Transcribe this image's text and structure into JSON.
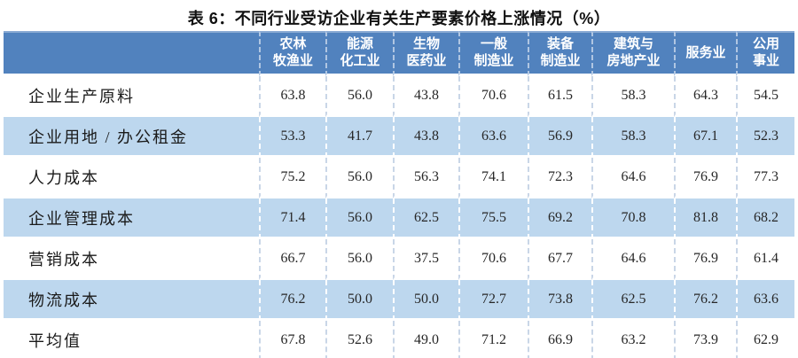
{
  "page": {
    "title": "表 6：不同行业受访企业有关生产要素价格上涨情况（%）"
  },
  "colors": {
    "header_bg": "#5182be",
    "header_text": "#ffffff",
    "row_alt_bg": "#bdd7ee",
    "row_white_bg": "#ffffff",
    "dashed_divider_on_white": "#c9d6e7",
    "dashed_divider_on_blue": "#ffffff",
    "bottom_bar": "#5182be",
    "body_text": "#272727"
  },
  "chart_data": {
    "type": "table",
    "title": "表 6：不同行业受访企业有关生产要素价格上涨情况（%）",
    "unit": "%",
    "row_header_label": "",
    "columns": [
      "农林牧渔业",
      "能源化工业",
      "生物医药业",
      "一般制造业",
      "装备制造业",
      "建筑与房地产业",
      "服务业",
      "公用事业"
    ],
    "columns_display": [
      "农林\n牧渔业",
      "能源\n化工业",
      "生物\n医药业",
      "一般\n制造业",
      "装备\n制造业",
      "建筑与\n房地产业",
      "服务业",
      "公用\n事业"
    ],
    "rows": [
      {
        "label": "企业生产原料",
        "values": [
          63.8,
          56.0,
          43.8,
          70.6,
          61.5,
          58.3,
          64.3,
          54.5
        ]
      },
      {
        "label": "企业用地 / 办公租金",
        "values": [
          53.3,
          41.7,
          43.8,
          63.6,
          56.9,
          58.3,
          67.1,
          52.3
        ]
      },
      {
        "label": "人力成本",
        "values": [
          75.2,
          56.0,
          56.3,
          74.1,
          72.3,
          64.6,
          76.9,
          77.3
        ]
      },
      {
        "label": "企业管理成本",
        "values": [
          71.4,
          56.0,
          62.5,
          75.5,
          69.2,
          70.8,
          81.8,
          68.2
        ]
      },
      {
        "label": "营销成本",
        "values": [
          66.7,
          56.0,
          37.5,
          70.6,
          67.7,
          64.6,
          76.9,
          61.4
        ]
      },
      {
        "label": "物流成本",
        "values": [
          76.2,
          50.0,
          50.0,
          72.7,
          73.8,
          62.5,
          76.2,
          63.6
        ]
      },
      {
        "label": "平均值",
        "values": [
          67.8,
          52.6,
          49.0,
          71.2,
          66.9,
          63.2,
          73.9,
          62.9
        ]
      }
    ]
  }
}
